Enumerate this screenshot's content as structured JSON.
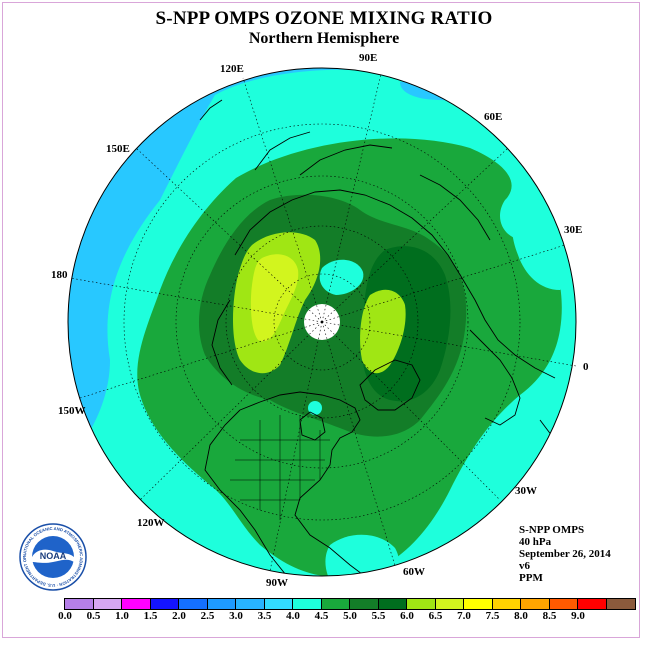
{
  "header": {
    "title": "S-NPP OMPS OZONE MIXING RATIO",
    "subtitle": "Northern Hemisphere"
  },
  "map": {
    "projection": "north polar stereographic",
    "longitude_labels": [
      "120E",
      "90E",
      "60E",
      "150E",
      "30E",
      "180",
      "0",
      "150W",
      "30W",
      "120W",
      "90W",
      "60W"
    ],
    "missing_data_at_pole": true
  },
  "info": {
    "instrument": "S-NPP OMPS",
    "level": "40 hPa",
    "date": "September 26, 2014",
    "version": "v6",
    "units": "PPM"
  },
  "colorbar": {
    "labels": [
      "0.0",
      "0.5",
      "1.0",
      "1.5",
      "2.0",
      "2.5",
      "3.0",
      "3.5",
      "4.0",
      "4.5",
      "5.0",
      "5.5",
      "6.0",
      "6.5",
      "7.0",
      "7.5",
      "8.0",
      "8.5",
      "9.0"
    ],
    "colors": [
      "#b57fe8",
      "#d6a6f2",
      "#ff00ff",
      "#1414ff",
      "#1470ff",
      "#1e9bff",
      "#28b4ff",
      "#32dcff",
      "#1effdc",
      "#19a83c",
      "#137d28",
      "#006e1e",
      "#a0e614",
      "#d2f51e",
      "#ffff00",
      "#ffd200",
      "#ffa500",
      "#ff5a00",
      "#ff0000",
      "#8b5a3c"
    ]
  },
  "logo": {
    "text": "NOAA",
    "ring_text": "NATIONAL OCEANIC AND ATMOSPHERIC ADMINISTRATION · U.S. DEPARTMENT OF COMMERCE"
  }
}
